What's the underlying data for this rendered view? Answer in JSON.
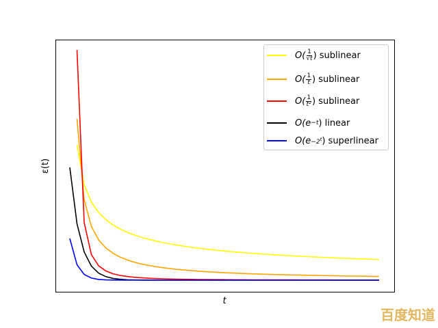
{
  "chart_data": {
    "type": "line",
    "xlabel": "t",
    "ylabel": "ε(t)",
    "xlim": [
      -2,
      45.1
    ],
    "ylim": [
      -0.17,
      3.52
    ],
    "grid": false,
    "ticks": false,
    "legend_placement": "top-right",
    "series": [
      {
        "name": "O(1/√t) sublinear",
        "color": "#ffff00",
        "x": [
          1,
          2,
          3,
          4,
          5,
          6,
          7,
          8,
          9,
          10,
          11,
          12,
          13,
          14,
          15,
          16,
          17,
          18,
          19,
          20,
          21,
          22,
          23,
          24,
          25,
          26,
          27,
          28,
          29,
          30,
          31,
          32,
          33,
          34,
          35,
          36,
          37,
          38,
          39,
          40,
          41,
          42,
          43
        ],
        "y": [
          1.98,
          1.4,
          1.143,
          0.99,
          0.886,
          0.808,
          0.748,
          0.7,
          0.66,
          0.626,
          0.597,
          0.572,
          0.549,
          0.529,
          0.511,
          0.495,
          0.48,
          0.467,
          0.454,
          0.443,
          0.432,
          0.422,
          0.413,
          0.404,
          0.396,
          0.388,
          0.381,
          0.374,
          0.368,
          0.362,
          0.356,
          0.35,
          0.345,
          0.34,
          0.335,
          0.33,
          0.326,
          0.321,
          0.317,
          0.313,
          0.309,
          0.306,
          0.302
        ]
      },
      {
        "name": "O(1/t) sublinear",
        "color": "#ffa500",
        "x": [
          1,
          2,
          3,
          4,
          5,
          6,
          7,
          8,
          9,
          10,
          11,
          12,
          13,
          14,
          15,
          16,
          17,
          18,
          19,
          20,
          21,
          22,
          23,
          24,
          25,
          26,
          27,
          28,
          29,
          30,
          31,
          32,
          33,
          34,
          35,
          36,
          37,
          38,
          39,
          40,
          41,
          42,
          43
        ],
        "y": [
          2.36,
          1.18,
          0.787,
          0.59,
          0.472,
          0.393,
          0.337,
          0.295,
          0.262,
          0.236,
          0.215,
          0.197,
          0.182,
          0.169,
          0.157,
          0.148,
          0.139,
          0.131,
          0.124,
          0.118,
          0.112,
          0.107,
          0.103,
          0.098,
          0.094,
          0.091,
          0.087,
          0.084,
          0.081,
          0.079,
          0.076,
          0.074,
          0.072,
          0.069,
          0.067,
          0.066,
          0.064,
          0.062,
          0.061,
          0.059,
          0.058,
          0.056,
          0.055
        ]
      },
      {
        "name": "O(1/t²) sublinear",
        "color": "#ff0000",
        "x": [
          1,
          2,
          3,
          4,
          5,
          6,
          7,
          8,
          9,
          10,
          11,
          12,
          13,
          14,
          15,
          16,
          17,
          18,
          19,
          20,
          21,
          22,
          23,
          24,
          25,
          26,
          27,
          28,
          29,
          30,
          31,
          32,
          33,
          34,
          35,
          36,
          37,
          38,
          39,
          40,
          41,
          42,
          43
        ],
        "y": [
          3.37,
          0.843,
          0.374,
          0.211,
          0.135,
          0.094,
          0.069,
          0.053,
          0.042,
          0.034,
          0.028,
          0.023,
          0.02,
          0.017,
          0.015,
          0.013,
          0.012,
          0.01,
          0.009,
          0.008,
          0.008,
          0.007,
          0.006,
          0.006,
          0.005,
          0.005,
          0.005,
          0.004,
          0.004,
          0.004,
          0.004,
          0.003,
          0.003,
          0.003,
          0.003,
          0.003,
          0.002,
          0.002,
          0.002,
          0.002,
          0.002,
          0.002,
          0.002
        ]
      },
      {
        "name": "O(e^-t) linear",
        "color": "#000000",
        "x": [
          0,
          1,
          2,
          3,
          4,
          5,
          6,
          7,
          8,
          9,
          10,
          11,
          12,
          13,
          14,
          15,
          16,
          17,
          18,
          19,
          20,
          21,
          22,
          23,
          24,
          25,
          26,
          27,
          28,
          29,
          30,
          31,
          32,
          33,
          34,
          35,
          36,
          37,
          38,
          39,
          40,
          41,
          42,
          43
        ],
        "y": [
          1.65,
          0.825,
          0.413,
          0.206,
          0.103,
          0.052,
          0.026,
          0.013,
          0.006,
          0.003,
          0.002,
          0.001,
          0,
          0,
          0,
          0,
          0,
          0,
          0,
          0,
          0,
          0,
          0,
          0,
          0,
          0,
          0,
          0,
          0,
          0,
          0,
          0,
          0,
          0,
          0,
          0,
          0,
          0,
          0,
          0,
          0,
          0,
          0,
          0
        ]
      },
      {
        "name": "O(e^-2^t) superlinear",
        "color": "#0000ff",
        "x": [
          0,
          1,
          2,
          3,
          4,
          5,
          6,
          7,
          8,
          9,
          10,
          11,
          12,
          13,
          14,
          15,
          16,
          17,
          18,
          19,
          20,
          21,
          22,
          23,
          24,
          25,
          26,
          27,
          28,
          29,
          30,
          31,
          32,
          33,
          34,
          35,
          36,
          37,
          38,
          39,
          40,
          41,
          42,
          43
        ],
        "y": [
          0.61,
          0.226,
          0.084,
          0.031,
          0.011,
          0.004,
          0.002,
          0.001,
          0,
          0,
          0,
          0,
          0,
          0,
          0,
          0,
          0,
          0,
          0,
          0,
          0,
          0,
          0,
          0,
          0,
          0,
          0,
          0,
          0,
          0,
          0,
          0,
          0,
          0,
          0,
          0,
          0,
          0,
          0,
          0,
          0,
          0,
          0,
          0
        ]
      }
    ]
  },
  "legend": [
    {
      "prefix": "O(",
      "num": "1",
      "den": "√t",
      "suffix": ") sublinear"
    },
    {
      "prefix": "O(",
      "num": "1",
      "den": "t",
      "suffix": ") sublinear"
    },
    {
      "prefix": "O(",
      "num": "1",
      "den": "t²",
      "suffix": ") sublinear"
    },
    {
      "prefix": "O(e",
      "sup": "−t",
      "suffix": ") linear"
    },
    {
      "prefix": "O(e",
      "sup": "−2",
      "supsup": "t",
      "suffix": ") superlinear"
    }
  ],
  "watermark": "百度知道"
}
